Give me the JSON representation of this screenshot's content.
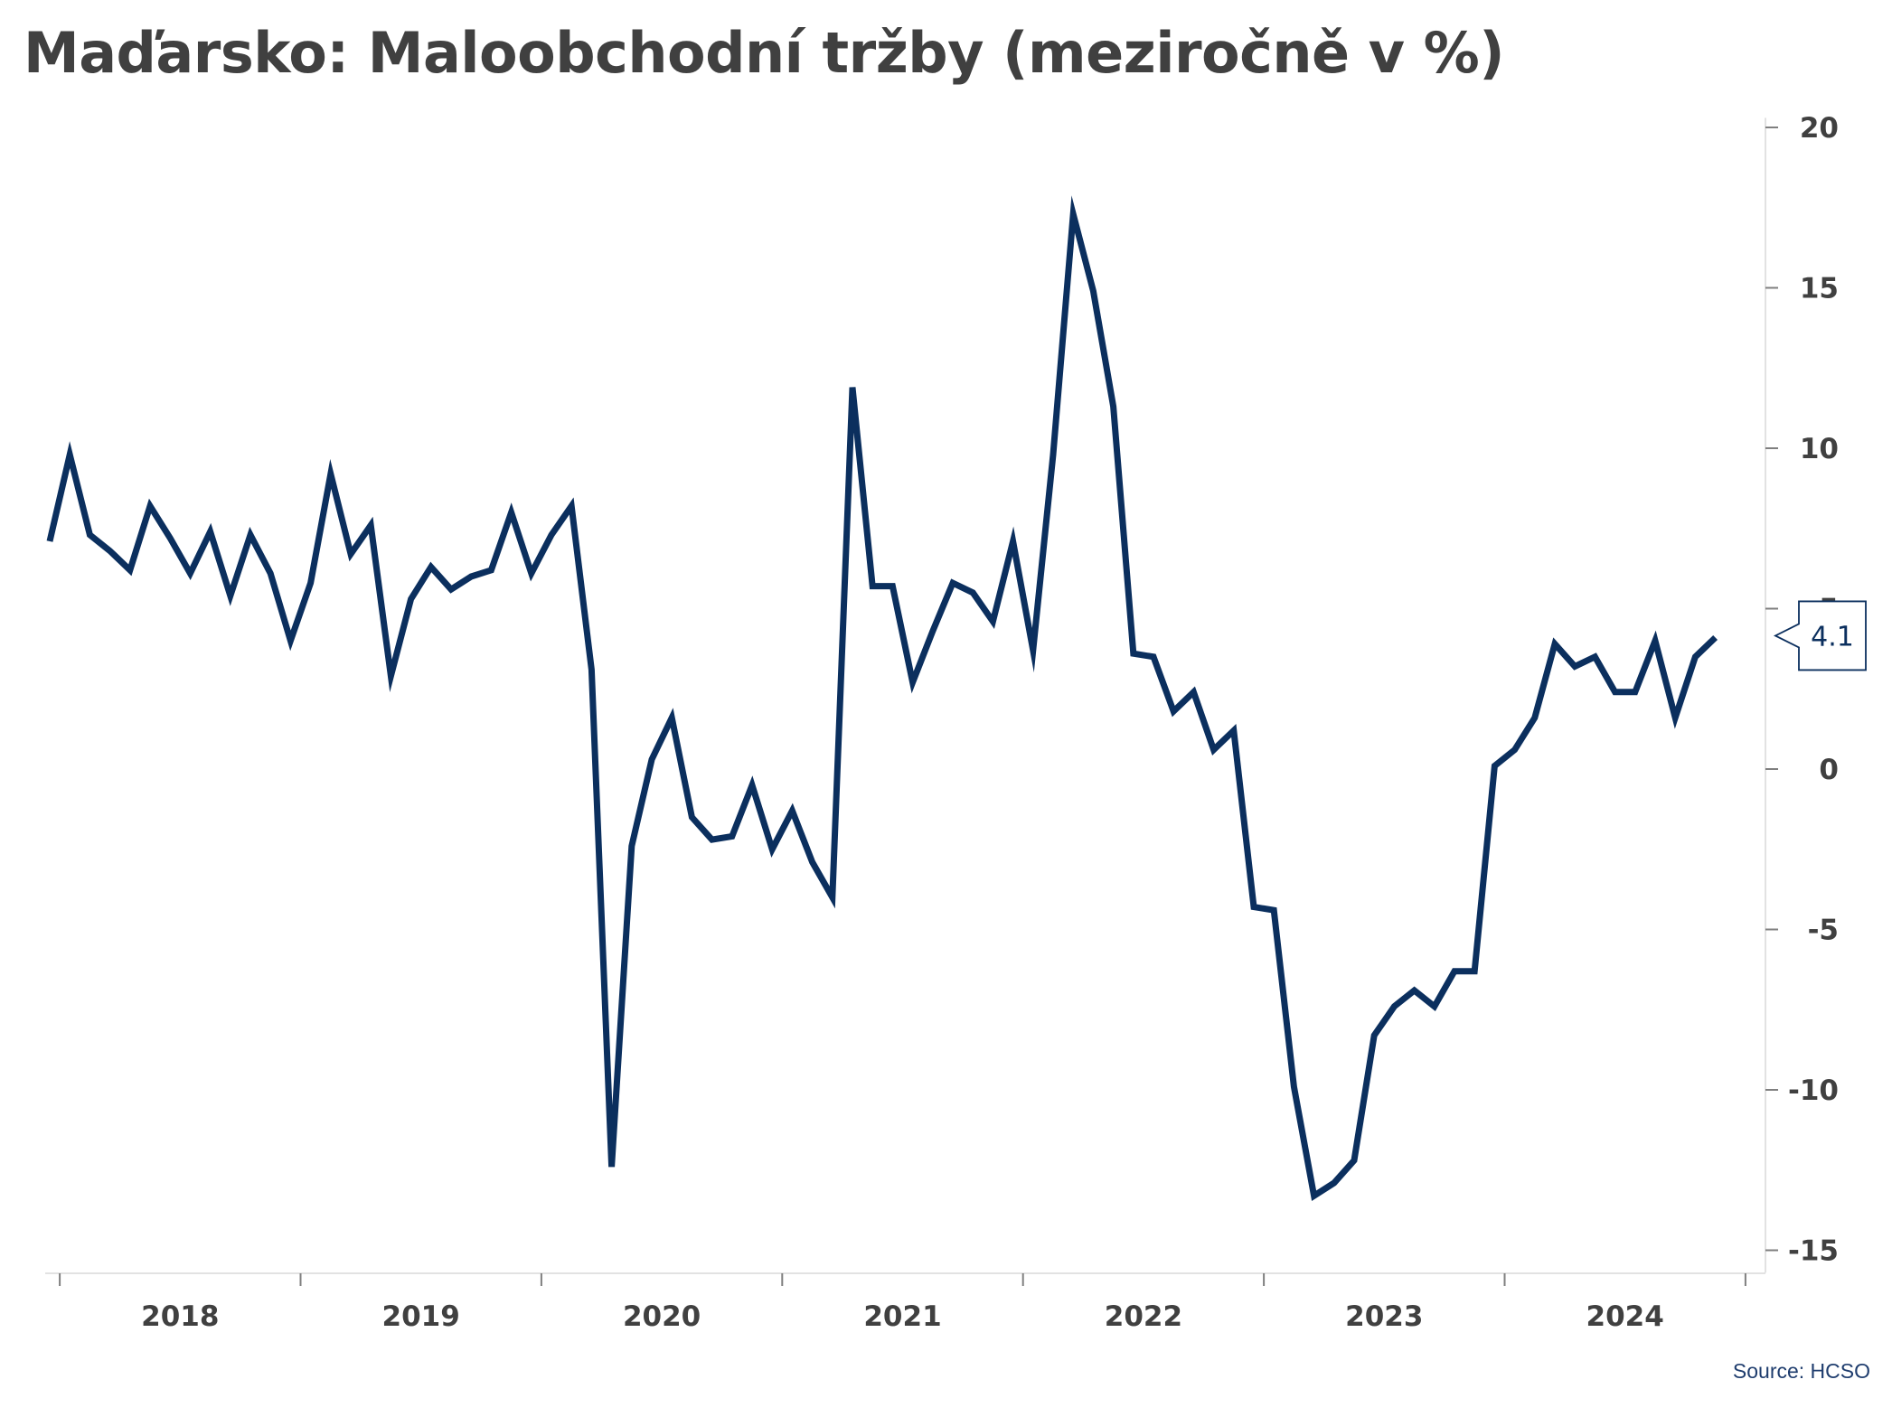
{
  "chart_data": {
    "type": "line",
    "title": "Maďarsko: Maloobchodní tržby (meziročně v %)",
    "source": "Source: HCSO",
    "x_start": "2017-12",
    "frequency": "monthly",
    "x_tick_labels": [
      "2018",
      "2019",
      "2020",
      "2021",
      "2022",
      "2023",
      "2024"
    ],
    "y_ticks": [
      20,
      15,
      10,
      5,
      0,
      -5,
      -10,
      -15
    ],
    "ylim": [
      -15.7,
      20.3
    ],
    "y_axis_position": "right",
    "grid": false,
    "last_value_label": "4.1",
    "line_color": "#0b2f5e",
    "text_color": "#404040",
    "series": [
      {
        "values": [
          7.1,
          9.8,
          7.3,
          6.8,
          6.2,
          8.2,
          7.2,
          6.1,
          7.4,
          5.4,
          7.3,
          6.1,
          4.0,
          5.8,
          9.2,
          6.7,
          7.6,
          2.9,
          5.3,
          6.3,
          5.6,
          6.0,
          6.2,
          8.0,
          6.1,
          7.3,
          8.2,
          3.1,
          -12.4,
          -2.4,
          0.3,
          1.6,
          -1.5,
          -2.2,
          -2.1,
          -0.5,
          -2.5,
          -1.3,
          -2.9,
          -4.0,
          11.9,
          5.7,
          5.7,
          2.7,
          4.3,
          5.8,
          5.5,
          4.6,
          7.1,
          3.7,
          9.8,
          17.3,
          14.9,
          11.3,
          3.6,
          3.5,
          1.8,
          2.4,
          0.6,
          1.2,
          -4.3,
          -4.4,
          -9.9,
          -13.3,
          -12.9,
          -12.2,
          -8.3,
          -7.4,
          -6.9,
          -7.4,
          -6.3,
          -6.3,
          0.1,
          0.6,
          1.6,
          3.9,
          3.2,
          3.5,
          2.4,
          2.4,
          4.0,
          1.6,
          3.5,
          4.1
        ]
      }
    ]
  }
}
